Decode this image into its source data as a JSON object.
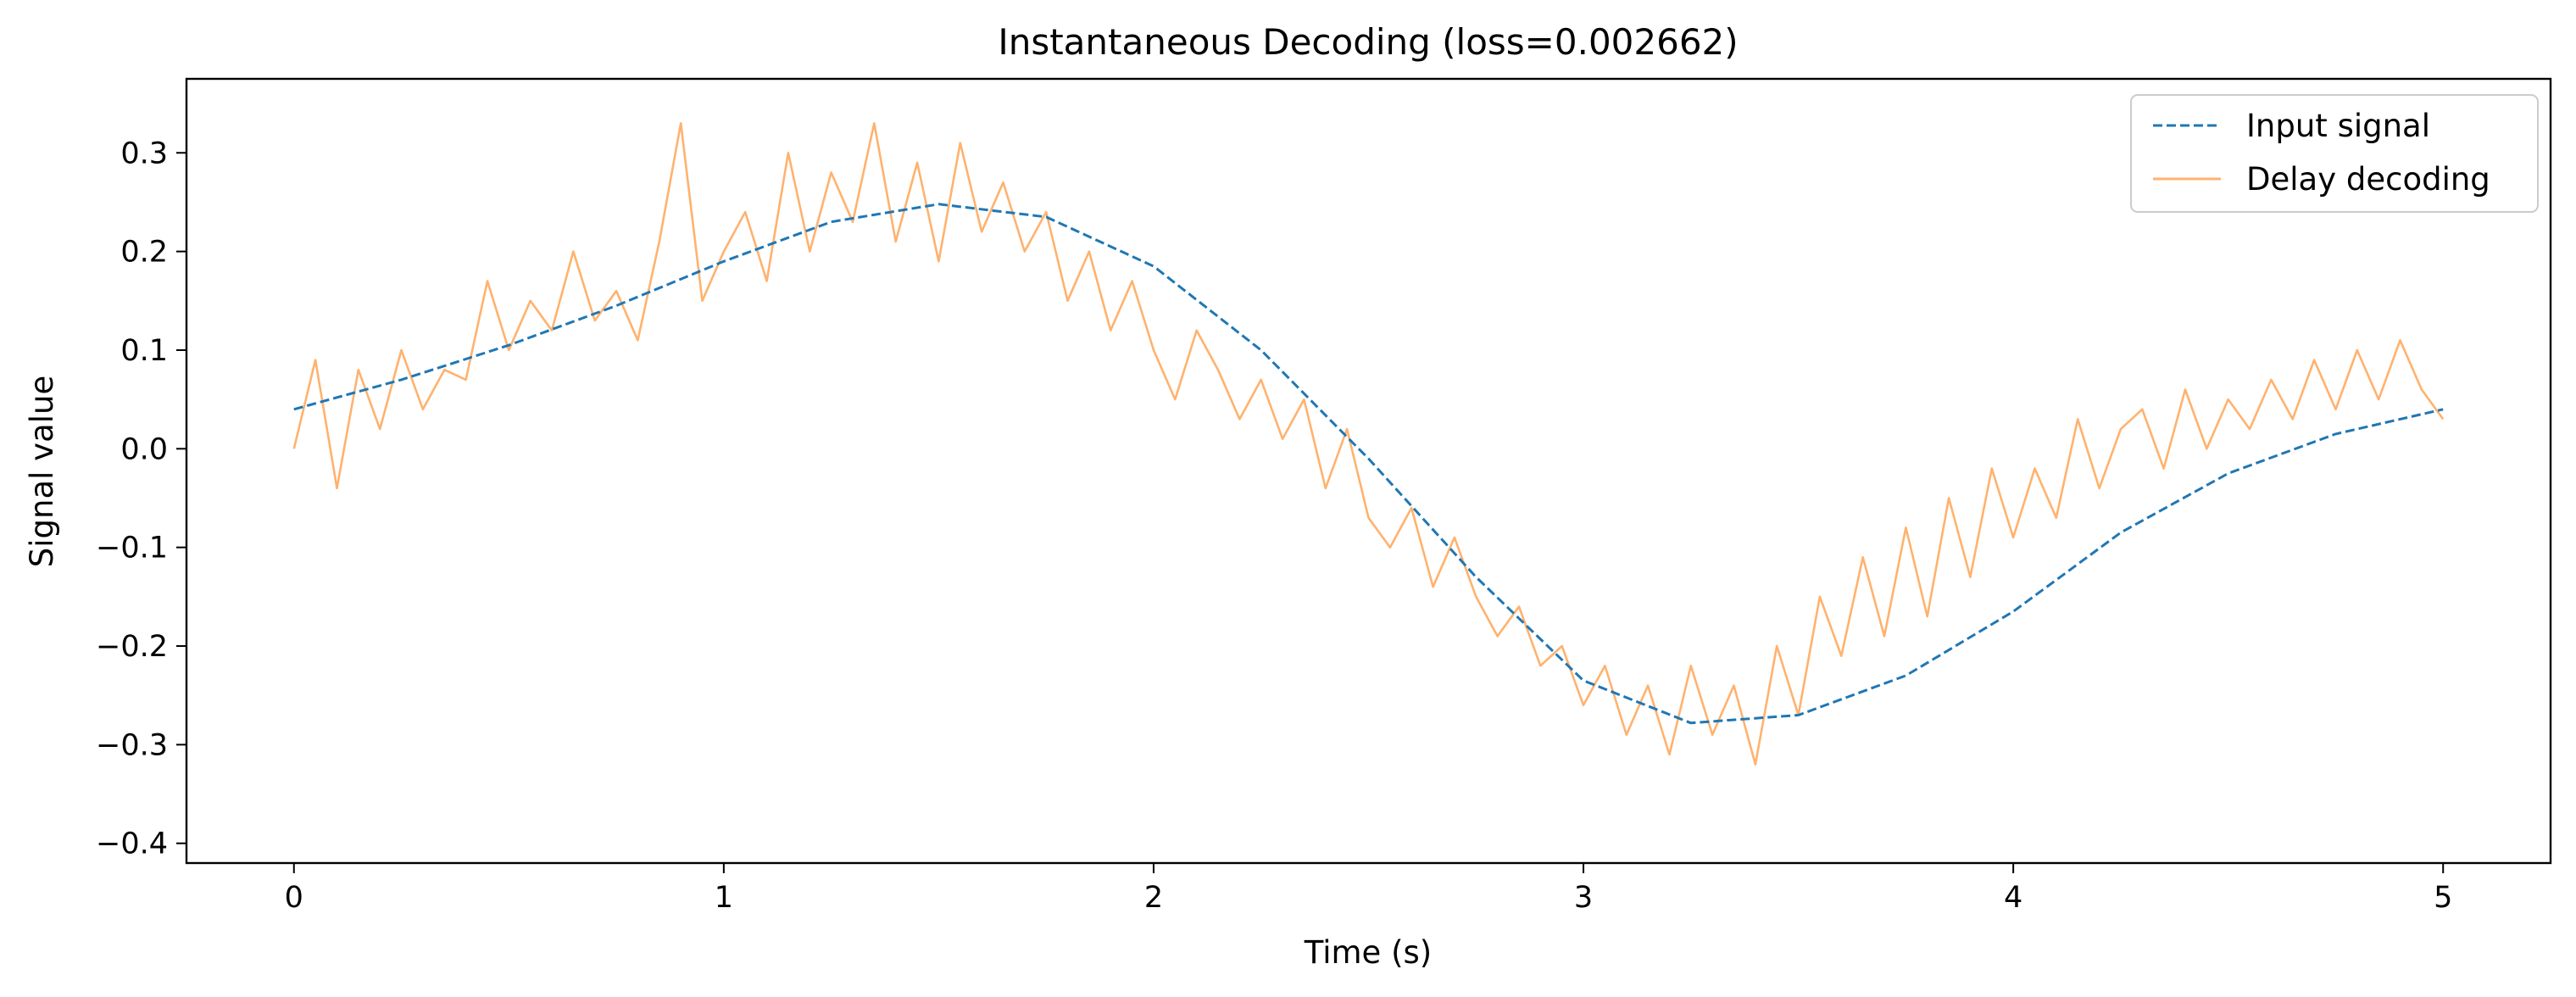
{
  "chart_data": {
    "type": "line",
    "title": "Instantaneous Decoding (loss=0.002662)",
    "xlabel": "Time (s)",
    "ylabel": "Signal value",
    "xlim": [
      -0.25,
      5.25
    ],
    "ylim": [
      -0.42,
      0.375
    ],
    "xticks": [
      0,
      1,
      2,
      3,
      4,
      5
    ],
    "xtick_labels": [
      "0",
      "1",
      "2",
      "3",
      "4",
      "5"
    ],
    "yticks": [
      0.3,
      0.2,
      0.1,
      0.0,
      -0.1,
      -0.2,
      -0.3,
      -0.4
    ],
    "ytick_labels": [
      "0.3",
      "0.2",
      "0.1",
      "0.0",
      "−0.1",
      "−0.2",
      "−0.3",
      "−0.4"
    ],
    "grid": false,
    "legend": "top-right",
    "series": [
      {
        "name": "Input signal",
        "style": "dashed",
        "color": "#1f77b4",
        "x": [
          0,
          0.25,
          0.5,
          0.75,
          1.0,
          1.25,
          1.5,
          1.75,
          2.0,
          2.25,
          2.5,
          2.75,
          3.0,
          3.25,
          3.5,
          3.75,
          4.0,
          4.25,
          4.5,
          4.75,
          5.0
        ],
        "y": [
          0.04,
          0.07,
          0.105,
          0.145,
          0.19,
          0.23,
          0.248,
          0.235,
          0.185,
          0.1,
          -0.01,
          -0.13,
          -0.235,
          -0.278,
          -0.27,
          -0.23,
          -0.165,
          -0.085,
          -0.025,
          0.015,
          0.04
        ]
      },
      {
        "name": "Delay decoding",
        "style": "solid",
        "color": "#ffb26e",
        "x": [
          0,
          0.05,
          0.1,
          0.15,
          0.2,
          0.25,
          0.3,
          0.35,
          0.4,
          0.45,
          0.5,
          0.55,
          0.6,
          0.65,
          0.7,
          0.75,
          0.8,
          0.85,
          0.9,
          0.95,
          1.0,
          1.05,
          1.1,
          1.15,
          1.2,
          1.25,
          1.3,
          1.35,
          1.4,
          1.45,
          1.5,
          1.55,
          1.6,
          1.65,
          1.7,
          1.75,
          1.8,
          1.85,
          1.9,
          1.95,
          2.0,
          2.05,
          2.1,
          2.15,
          2.2,
          2.25,
          2.3,
          2.35,
          2.4,
          2.45,
          2.5,
          2.55,
          2.6,
          2.65,
          2.7,
          2.75,
          2.8,
          2.85,
          2.9,
          2.95,
          3.0,
          3.05,
          3.1,
          3.15,
          3.2,
          3.25,
          3.3,
          3.35,
          3.4,
          3.45,
          3.5,
          3.55,
          3.6,
          3.65,
          3.7,
          3.75,
          3.8,
          3.85,
          3.9,
          3.95,
          4.0,
          4.05,
          4.1,
          4.15,
          4.2,
          4.25,
          4.3,
          4.35,
          4.4,
          4.45,
          4.5,
          4.55,
          4.6,
          4.65,
          4.7,
          4.75,
          4.8,
          4.85,
          4.9,
          4.95,
          5.0
        ],
        "y": [
          0.0,
          0.09,
          -0.04,
          0.08,
          0.02,
          0.1,
          0.04,
          0.08,
          0.07,
          0.17,
          0.1,
          0.15,
          0.12,
          0.2,
          0.13,
          0.16,
          0.11,
          0.21,
          0.33,
          0.15,
          0.2,
          0.24,
          0.17,
          0.3,
          0.2,
          0.28,
          0.23,
          0.33,
          0.21,
          0.29,
          0.19,
          0.31,
          0.22,
          0.27,
          0.2,
          0.24,
          0.15,
          0.2,
          0.12,
          0.17,
          0.1,
          0.05,
          0.12,
          0.08,
          0.03,
          0.07,
          0.01,
          0.05,
          -0.04,
          0.02,
          -0.07,
          -0.1,
          -0.06,
          -0.14,
          -0.09,
          -0.15,
          -0.19,
          -0.16,
          -0.22,
          -0.2,
          -0.26,
          -0.22,
          -0.29,
          -0.24,
          -0.31,
          -0.22,
          -0.29,
          -0.24,
          -0.32,
          -0.2,
          -0.27,
          -0.15,
          -0.21,
          -0.11,
          -0.19,
          -0.08,
          -0.17,
          -0.05,
          -0.13,
          -0.02,
          -0.09,
          -0.02,
          -0.07,
          0.03,
          -0.04,
          0.02,
          0.04,
          -0.02,
          0.06,
          0.0,
          0.05,
          0.02,
          0.07,
          0.03,
          0.09,
          0.04,
          0.1,
          0.05,
          0.11,
          0.06,
          0.03
        ]
      }
    ]
  }
}
